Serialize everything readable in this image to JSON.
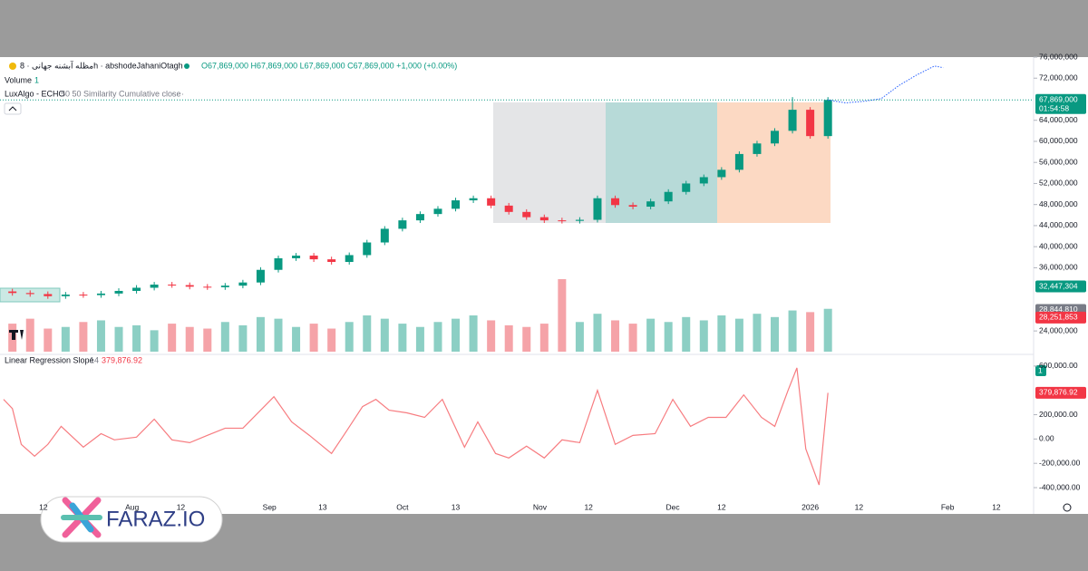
{
  "chart_data": [
    {
      "type": "candlestick",
      "title": "مظله آبشنه جهانی · 8h · abshodeJahaniOtagh",
      "ohlc_text": "O67,869,000 H67,869,000 L67,869,000 C67,869,000 +1,000 (+0.00%)",
      "volume_label": "Volume",
      "volume_length": "1",
      "overlay_label": "LuxAlgo - ECHO",
      "overlay_params": "50 50 Similarity Cumulative close",
      "up_color": "#089981",
      "down_color": "#f23645",
      "volume_up_color": "#8ccfc4",
      "volume_down_color": "#f5a3a8",
      "x": [
        4,
        8,
        12,
        16,
        20,
        24,
        28,
        32,
        36,
        40,
        44,
        48,
        52,
        56,
        60,
        64,
        68,
        72,
        76,
        80,
        84,
        88,
        92,
        96,
        100,
        104,
        108,
        112,
        116,
        120,
        124,
        128,
        132,
        136,
        140,
        144,
        148,
        152,
        156,
        160,
        164,
        168,
        172,
        176,
        180,
        184,
        188
      ],
      "open": [
        31500000,
        31200000,
        31000000,
        30600000,
        30900000,
        30800000,
        31100000,
        31600000,
        32200000,
        32800000,
        32700000,
        32400000,
        32300000,
        32600000,
        33200000,
        35600000,
        37800000,
        38300000,
        37600000,
        37100000,
        38400000,
        40800000,
        43400000,
        45000000,
        46200000,
        47200000,
        48800000,
        49200000,
        47800000,
        46600000,
        45600000,
        45000000,
        44900000,
        45100000,
        49200000,
        47900000,
        47600000,
        48600000,
        50400000,
        52000000,
        53200000,
        54600000,
        57600000,
        59600000,
        62000000,
        66000000,
        61000000
      ],
      "high": [
        32000000,
        31700000,
        31500000,
        31400000,
        31400000,
        31600000,
        32100000,
        32700000,
        33300000,
        33300000,
        33200000,
        32900000,
        33100000,
        33700000,
        36100000,
        38300000,
        38800000,
        38800000,
        38100000,
        38900000,
        41300000,
        43900000,
        45500000,
        46700000,
        47700000,
        49300000,
        49700000,
        49700000,
        48300000,
        47100000,
        46100000,
        45500000,
        45600000,
        49700000,
        49700000,
        48400000,
        49100000,
        50900000,
        52500000,
        53700000,
        55100000,
        58100000,
        60100000,
        62500000,
        68400000,
        66500000,
        68400000
      ],
      "low": [
        30700000,
        30500000,
        30100000,
        30100000,
        30300000,
        30300000,
        30600000,
        31100000,
        31700000,
        32200000,
        31900000,
        31800000,
        31800000,
        32100000,
        32700000,
        35100000,
        37300000,
        37100000,
        36600000,
        36600000,
        37900000,
        40300000,
        42900000,
        44500000,
        45700000,
        46700000,
        48300000,
        47300000,
        46100000,
        45100000,
        44500000,
        44400000,
        44400000,
        44600000,
        47400000,
        47100000,
        47100000,
        48100000,
        49900000,
        51500000,
        52700000,
        54100000,
        57100000,
        59100000,
        61500000,
        60500000,
        60500000
      ],
      "close": [
        31200000,
        31000000,
        30600000,
        30900000,
        30800000,
        31100000,
        31600000,
        32200000,
        32800000,
        32700000,
        32400000,
        32300000,
        32600000,
        33200000,
        35600000,
        37800000,
        38300000,
        37600000,
        37100000,
        38400000,
        40800000,
        43400000,
        45000000,
        46200000,
        47200000,
        48800000,
        49200000,
        47800000,
        46600000,
        45600000,
        45000000,
        44900000,
        45100000,
        49200000,
        47900000,
        47600000,
        48600000,
        50400000,
        52000000,
        53200000,
        54600000,
        57600000,
        59600000,
        62000000,
        66000000,
        61000000,
        67869000
      ],
      "volume": [
        34,
        40,
        28,
        30,
        36,
        38,
        30,
        32,
        26,
        34,
        30,
        28,
        36,
        32,
        42,
        40,
        30,
        34,
        28,
        36,
        44,
        40,
        34,
        30,
        36,
        40,
        44,
        38,
        32,
        30,
        34,
        88,
        36,
        46,
        38,
        34,
        40,
        36,
        42,
        38,
        44,
        40,
        46,
        42,
        50,
        48,
        52
      ],
      "forecast": {
        "color": "#2962ff",
        "x": [
          188,
          192,
          196,
          200,
          204,
          208,
          212,
          214
        ],
        "values": [
          67869000,
          67300000,
          67600000,
          68100000,
          70600000,
          72600000,
          74300000,
          74000000
        ]
      },
      "last_price": {
        "value": 67869000,
        "label": "67,869,000",
        "color": "#089981"
      },
      "countdown": "01:54:58",
      "price_labels": [
        {
          "value": 32447304,
          "label": "32,447,304",
          "color": "#089981"
        },
        {
          "value": 28844810,
          "label": "28,844,810",
          "color": "#787b86"
        },
        {
          "value": 28251853,
          "label": "28,251,853",
          "color": "#f23645"
        }
      ],
      "xlim": [
        1.2,
        234.4
      ],
      "ylim": [
        19720000,
        76000000
      ],
      "yticks": [
        {
          "value": 76000000,
          "label": "76,000,000"
        },
        {
          "value": 72000000,
          "label": "72,000,000"
        },
        {
          "value": 64000000,
          "label": "64,000,000"
        },
        {
          "value": 60000000,
          "label": "60,000,000"
        },
        {
          "value": 56000000,
          "label": "56,000,000"
        },
        {
          "value": 52000000,
          "label": "52,000,000"
        },
        {
          "value": 48000000,
          "label": "48,000,000"
        },
        {
          "value": 44000000,
          "label": "44,000,000"
        },
        {
          "value": 40000000,
          "label": "40,000,000"
        },
        {
          "value": 36000000,
          "label": "36,000,000"
        },
        {
          "value": 24000000,
          "label": "24,000,000"
        }
      ]
    },
    {
      "type": "line",
      "title": "Linear Regression Slope",
      "params": "14",
      "value_text": "379,876.92",
      "color": "#f77c80",
      "x": [
        2,
        4,
        6,
        9,
        12,
        15,
        20,
        24,
        27,
        32,
        36,
        40,
        44,
        48,
        52,
        56,
        63,
        67,
        71,
        76,
        79,
        83,
        86,
        89,
        93,
        97,
        101,
        106,
        109,
        113,
        116,
        120,
        124,
        128,
        132,
        136,
        140,
        144,
        149,
        153,
        157,
        161,
        165,
        169,
        173,
        176,
        179,
        181,
        183,
        186,
        188
      ],
      "values": [
        326000,
        250000,
        -44000,
        -141000,
        -44000,
        104000,
        -67000,
        44000,
        -7000,
        15000,
        163000,
        -7000,
        -30000,
        30000,
        89000,
        89000,
        348000,
        141000,
        30000,
        -119000,
        44000,
        267000,
        326000,
        237000,
        215000,
        178000,
        326000,
        -67000,
        141000,
        -119000,
        -156000,
        -59000,
        -156000,
        -7000,
        -30000,
        400000,
        -44000,
        30000,
        44000,
        326000,
        104000,
        178000,
        178000,
        363000,
        178000,
        104000,
        400000,
        585000,
        -81000,
        -378000,
        379876.92
      ],
      "last_label": {
        "value": 379876.92,
        "label": "379,876.92",
        "color": "#f23645"
      },
      "xlim": [
        1.2,
        234.4
      ],
      "ylim": [
        -452000,
        696000
      ],
      "yticks": [
        {
          "value": 600000,
          "label": "600,000.00"
        },
        {
          "value": 200000,
          "label": "200,000.00"
        },
        {
          "value": 0,
          "label": "0.00"
        },
        {
          "value": -200000,
          "label": "-200,000.00"
        },
        {
          "value": -400000,
          "label": "-400,000.00"
        }
      ],
      "xticks": [
        {
          "value": 11,
          "label": "12"
        },
        {
          "value": 31,
          "label": "Aug"
        },
        {
          "value": 42,
          "label": "12"
        },
        {
          "value": 62,
          "label": "Sep"
        },
        {
          "value": 74,
          "label": "13"
        },
        {
          "value": 92,
          "label": "Oct"
        },
        {
          "value": 104,
          "label": "13"
        },
        {
          "value": 123,
          "label": "Nov"
        },
        {
          "value": 134,
          "label": "12"
        },
        {
          "value": 153,
          "label": "Dec"
        },
        {
          "value": 164,
          "label": "12"
        },
        {
          "value": 184,
          "label": "2026"
        },
        {
          "value": 195,
          "label": "12"
        },
        {
          "value": 215,
          "label": "Feb"
        },
        {
          "value": 226,
          "label": "12"
        }
      ]
    }
  ],
  "watermark": "FARAZ.IO"
}
